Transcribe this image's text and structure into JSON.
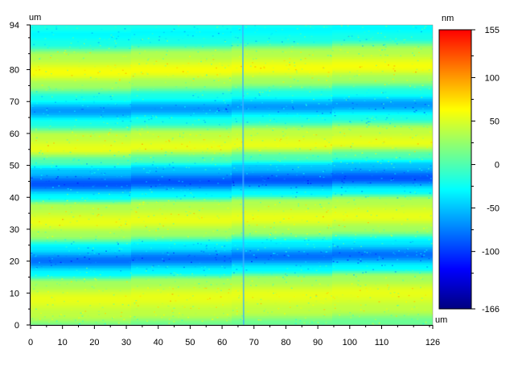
{
  "chart_data": {
    "type": "heatmap",
    "x_unit": "um",
    "y_unit": "um",
    "colorbar_unit": "nm",
    "xlim": [
      0,
      126
    ],
    "ylim": [
      0,
      94
    ],
    "x_ticks": [
      0,
      10,
      20,
      30,
      40,
      50,
      60,
      70,
      80,
      90,
      100,
      110,
      126
    ],
    "y_ticks": [
      0,
      10,
      20,
      30,
      40,
      50,
      60,
      70,
      80,
      94
    ],
    "z_range": [
      -166,
      155
    ],
    "colorbar_ticks": [
      155,
      100,
      50,
      0,
      -50,
      -100,
      -166
    ],
    "colormap": [
      "#000080",
      "#0000ff",
      "#0080ff",
      "#00ffff",
      "#80ff80",
      "#ffff00",
      "#ff8000",
      "#ff0000"
    ],
    "scan_artifact_x": 66.5,
    "stripe_profile": [
      {
        "y": 0,
        "z": 10
      },
      {
        "y": 4,
        "z": 40
      },
      {
        "y": 9,
        "z": 55
      },
      {
        "y": 14,
        "z": 30
      },
      {
        "y": 17,
        "z": -30
      },
      {
        "y": 21,
        "z": -80
      },
      {
        "y": 25,
        "z": -35
      },
      {
        "y": 29,
        "z": 30
      },
      {
        "y": 33,
        "z": 55
      },
      {
        "y": 38,
        "z": 35
      },
      {
        "y": 41,
        "z": -30
      },
      {
        "y": 45,
        "z": -90
      },
      {
        "y": 49,
        "z": -50
      },
      {
        "y": 52,
        "z": 0
      },
      {
        "y": 56,
        "z": 55
      },
      {
        "y": 60,
        "z": 40
      },
      {
        "y": 64,
        "z": -20
      },
      {
        "y": 68,
        "z": -65
      },
      {
        "y": 72,
        "z": -20
      },
      {
        "y": 76,
        "z": 30
      },
      {
        "y": 80,
        "z": 60
      },
      {
        "y": 85,
        "z": 35
      },
      {
        "y": 89,
        "z": -20
      },
      {
        "y": 92,
        "z": -30
      },
      {
        "y": 94,
        "z": -20
      }
    ]
  }
}
